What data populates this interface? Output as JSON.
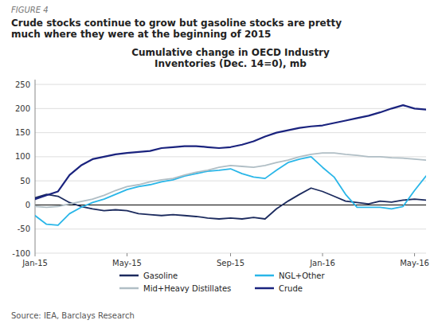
{
  "chart_data": {
    "type": "line",
    "title": "Cumulative change in OECD Industry\nInventories (Dec. 14=0), mb",
    "subtitle": "Crude stocks continue to grow but gasoline stocks are pretty\nmuch where they were at the beginning of 2015",
    "annotations": [
      "FIGURE 4",
      "Source: IEA, Barclays Research"
    ],
    "x": [
      0,
      1,
      2,
      3,
      4,
      5,
      6,
      7,
      8,
      9,
      10,
      11,
      12,
      13,
      14,
      15,
      16,
      17,
      18,
      19,
      20,
      21,
      22,
      23,
      24,
      25,
      26,
      27,
      28,
      29,
      30,
      31,
      32,
      33,
      34
    ],
    "xlim": [
      0,
      34
    ],
    "xticks": [
      {
        "value": 0,
        "label": "Jan-15"
      },
      {
        "value": 8,
        "label": "May-15"
      },
      {
        "value": 17,
        "label": "Sep-15"
      },
      {
        "value": 25,
        "label": "Jan-16"
      },
      {
        "value": 33,
        "label": "May-16"
      }
    ],
    "ylim": [
      -100,
      260
    ],
    "yticks": [
      -100,
      -50,
      0,
      50,
      100,
      150,
      200,
      250
    ],
    "grid": true,
    "legend": "bottom",
    "series": [
      {
        "name": "Gasoline",
        "color": "#1c2b5e",
        "values": [
          15,
          22,
          18,
          5,
          -3,
          -8,
          -12,
          -10,
          -12,
          -18,
          -20,
          -22,
          -20,
          -22,
          -24,
          -27,
          -29,
          -27,
          -29,
          -26,
          -29,
          -8,
          8,
          22,
          35,
          28,
          18,
          8,
          5,
          2,
          8,
          6,
          10,
          12,
          10
        ]
      },
      {
        "name": "NGL+Other",
        "color": "#29b6e8",
        "values": [
          -22,
          -40,
          -42,
          -18,
          -5,
          5,
          12,
          22,
          32,
          38,
          42,
          48,
          52,
          60,
          65,
          70,
          72,
          75,
          65,
          58,
          55,
          72,
          88,
          95,
          100,
          78,
          58,
          22,
          -5,
          -5,
          -5,
          -8,
          -3,
          30,
          60
        ]
      },
      {
        "name": "Mid+Heavy Distillates",
        "color": "#b0bec5",
        "values": [
          -3,
          -5,
          -3,
          2,
          7,
          12,
          20,
          30,
          38,
          42,
          48,
          52,
          55,
          62,
          68,
          72,
          78,
          82,
          80,
          78,
          82,
          88,
          93,
          100,
          105,
          108,
          108,
          105,
          103,
          100,
          100,
          98,
          97,
          95,
          93
        ]
      },
      {
        "name": "Crude",
        "color": "#1a237e",
        "values": [
          12,
          20,
          28,
          62,
          82,
          95,
          100,
          105,
          108,
          110,
          112,
          118,
          120,
          122,
          122,
          120,
          118,
          120,
          125,
          132,
          142,
          150,
          155,
          160,
          163,
          165,
          170,
          175,
          180,
          185,
          192,
          200,
          207,
          200,
          198
        ]
      }
    ]
  }
}
